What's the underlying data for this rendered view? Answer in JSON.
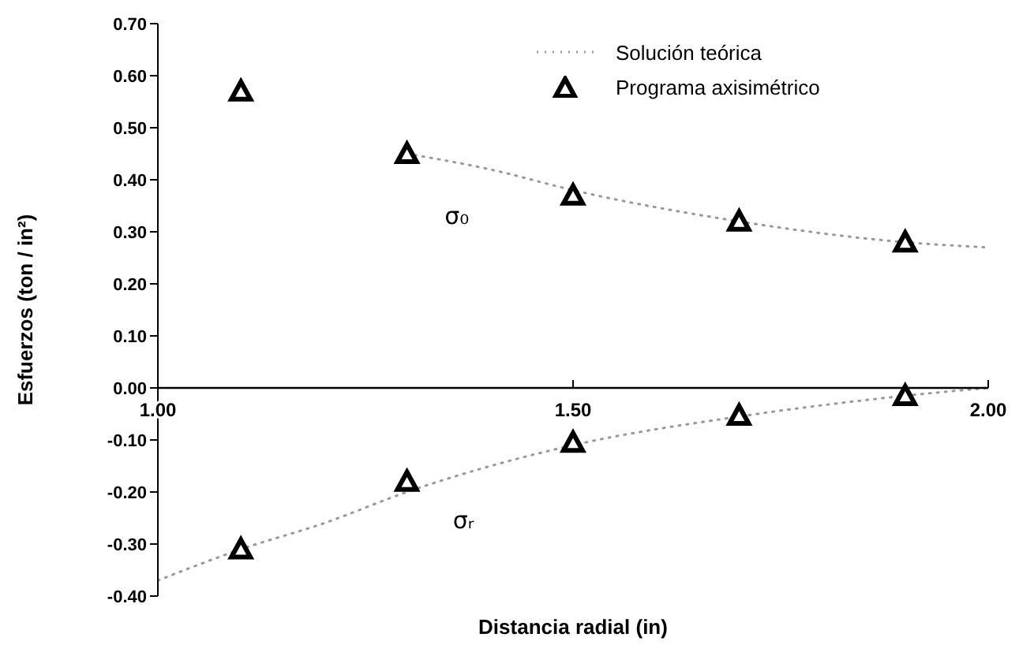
{
  "chart_data": {
    "type": "scatter",
    "xlabel": "Distancia radial (in)",
    "ylabel": "Esfuerzos (ton / in²)",
    "xlim": [
      1,
      2
    ],
    "xticks": [
      {
        "value": 1,
        "label": "1.00"
      },
      {
        "value": 1.5,
        "label": "1.50"
      },
      {
        "value": 2,
        "label": "2.00"
      }
    ],
    "ylim": [
      -0.4,
      0.7
    ],
    "yticks": [
      {
        "value": -0.4,
        "label": "-0.40"
      },
      {
        "value": -0.3,
        "label": "-0.30"
      },
      {
        "value": -0.2,
        "label": "-0.20"
      },
      {
        "value": -0.1,
        "label": "-0.10"
      },
      {
        "value": 0,
        "label": "0.00"
      },
      {
        "value": 0.1,
        "label": "0.10"
      },
      {
        "value": 0.2,
        "label": "0.20"
      },
      {
        "value": 0.3,
        "label": "0.30"
      },
      {
        "value": 0.4,
        "label": "0.40"
      },
      {
        "value": 0.5,
        "label": "0.50"
      },
      {
        "value": 0.6,
        "label": "0.60"
      },
      {
        "value": 0.7,
        "label": "0.70"
      }
    ],
    "legend": "top right",
    "series": [
      {
        "name": "Solución teórica",
        "type": "line",
        "color": "#999999",
        "line_style": "dotted",
        "marker": "none",
        "x": [
          1.3,
          1.4,
          1.5,
          1.7,
          1.9,
          2.0
        ],
        "values": [
          0.45,
          0.42,
          0.38,
          0.32,
          0.28,
          0.27
        ]
      },
      {
        "type": "line",
        "color": "#999999",
        "line_style": "dotted",
        "marker": "none",
        "x": [
          1.0,
          1.1,
          1.2,
          1.3,
          1.5,
          1.7,
          1.9,
          2.0
        ],
        "values": [
          -0.37,
          -0.31,
          -0.26,
          -0.2,
          -0.11,
          -0.055,
          -0.015,
          0
        ]
      },
      {
        "name": "Programa axisimétrico",
        "color": "#000000",
        "marker": "triangle",
        "x": [
          1.1,
          1.3,
          1.5,
          1.7,
          1.9
        ],
        "values": [
          0.57,
          0.45,
          0.37,
          0.32,
          0.28
        ]
      },
      {
        "color": "#000000",
        "marker": "triangle",
        "x": [
          1.1,
          1.3,
          1.5,
          1.7,
          1.9
        ],
        "values": [
          -0.31,
          -0.18,
          -0.105,
          -0.053,
          -0.015
        ]
      }
    ],
    "annotations": [
      "σ₀",
      "σᵣ"
    ]
  }
}
